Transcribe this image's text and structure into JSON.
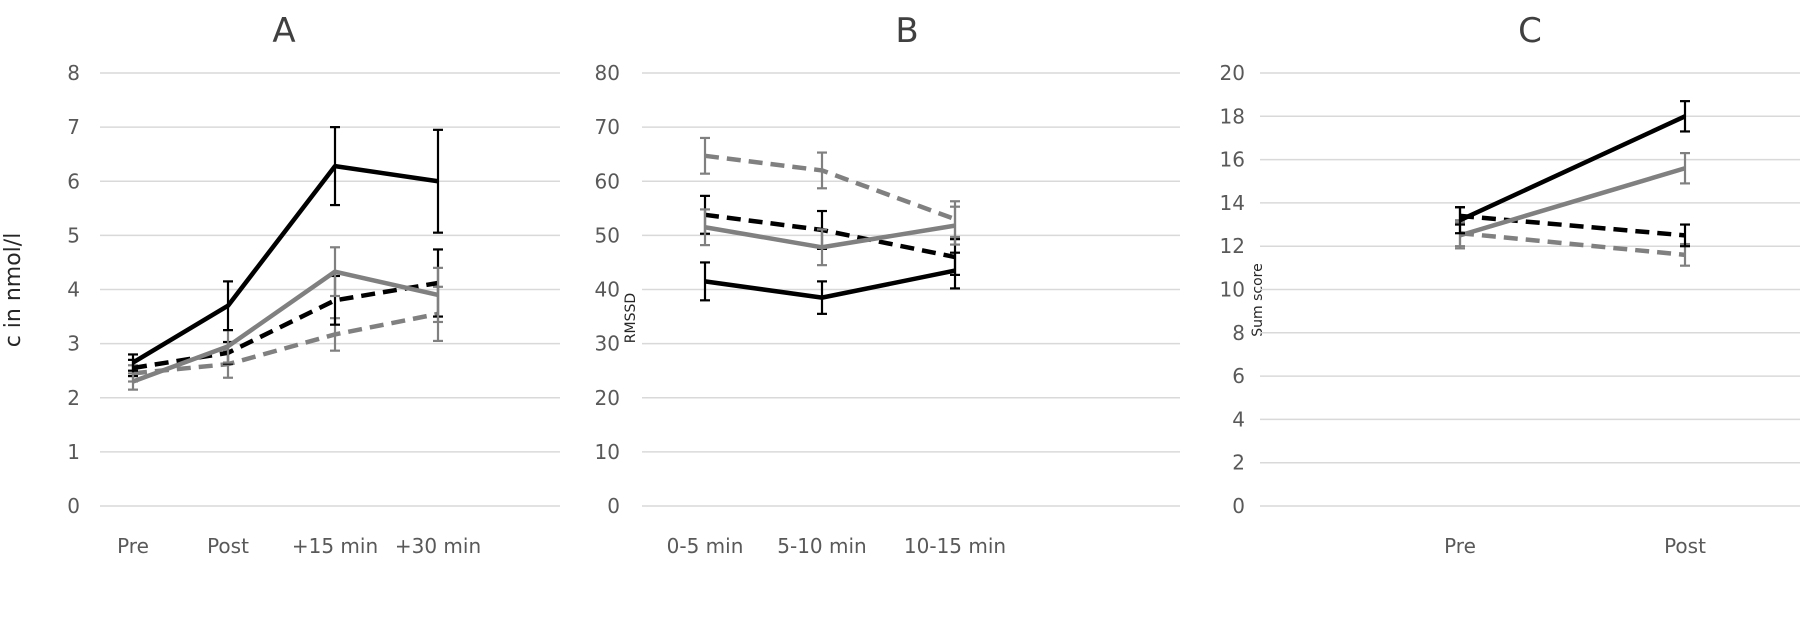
{
  "chart_data": [
    {
      "type": "line",
      "title": "A",
      "xlabel": "",
      "ylabel": "c in nmol/l",
      "categories": [
        "Pre",
        "Post",
        "+15 min",
        "+30 min"
      ],
      "ylim": [
        0,
        8
      ],
      "yticks": [
        0,
        1,
        2,
        3,
        4,
        5,
        6,
        7,
        8
      ],
      "grid": true,
      "series": [
        {
          "color": "#000000",
          "dash": "solid",
          "values": [
            2.65,
            3.7,
            6.28,
            6.0
          ],
          "errors": [
            0.15,
            0.45,
            0.72,
            0.95
          ]
        },
        {
          "color": "#808080",
          "dash": "solid",
          "values": [
            2.3,
            2.95,
            4.33,
            3.9
          ],
          "errors": [
            0.15,
            0.3,
            0.45,
            0.5
          ]
        },
        {
          "color": "#000000",
          "dash": "dashed",
          "values": [
            2.55,
            2.83,
            3.8,
            4.12
          ],
          "errors": [
            0.15,
            0.2,
            0.45,
            0.62
          ]
        },
        {
          "color": "#808080",
          "dash": "dashed",
          "values": [
            2.45,
            2.62,
            3.17,
            3.55
          ],
          "errors": [
            0.15,
            0.25,
            0.3,
            0.5
          ]
        }
      ]
    },
    {
      "type": "line",
      "title": "B",
      "xlabel": "",
      "ylabel": "RMSSD",
      "categories": [
        "0-5 min",
        "5-10 min",
        "10-15 min"
      ],
      "ylim": [
        0,
        80
      ],
      "yticks": [
        0,
        10,
        20,
        30,
        40,
        50,
        60,
        70,
        80
      ],
      "grid": true,
      "series": [
        {
          "color": "#000000",
          "dash": "solid",
          "values": [
            41.5,
            38.5,
            43.5
          ],
          "errors": [
            3.5,
            3.0,
            3.3
          ]
        },
        {
          "color": "#808080",
          "dash": "solid",
          "values": [
            51.5,
            47.8,
            51.8
          ],
          "errors": [
            3.3,
            3.3,
            3.5
          ]
        },
        {
          "color": "#000000",
          "dash": "dashed",
          "values": [
            53.8,
            51.0,
            46.0
          ],
          "errors": [
            3.5,
            3.5,
            3.3
          ]
        },
        {
          "color": "#808080",
          "dash": "dashed",
          "values": [
            64.7,
            62.0,
            53.0
          ],
          "errors": [
            3.3,
            3.3,
            3.3
          ]
        }
      ]
    },
    {
      "type": "line",
      "title": "C",
      "xlabel": "",
      "ylabel": "Sum score",
      "categories": [
        "Pre",
        "Post"
      ],
      "ylim": [
        0,
        20
      ],
      "yticks": [
        0,
        2,
        4,
        6,
        8,
        10,
        12,
        14,
        16,
        18,
        20
      ],
      "grid": true,
      "series": [
        {
          "color": "#000000",
          "dash": "solid",
          "values": [
            13.2,
            18.0
          ],
          "errors": [
            0.6,
            0.7
          ]
        },
        {
          "color": "#808080",
          "dash": "solid",
          "values": [
            12.5,
            15.6
          ],
          "errors": [
            0.6,
            0.7
          ]
        },
        {
          "color": "#000000",
          "dash": "dashed",
          "values": [
            13.4,
            12.5
          ],
          "errors": [
            0.4,
            0.5
          ]
        },
        {
          "color": "#808080",
          "dash": "dashed",
          "values": [
            12.6,
            11.6
          ],
          "errors": [
            0.6,
            0.5
          ]
        }
      ]
    }
  ]
}
